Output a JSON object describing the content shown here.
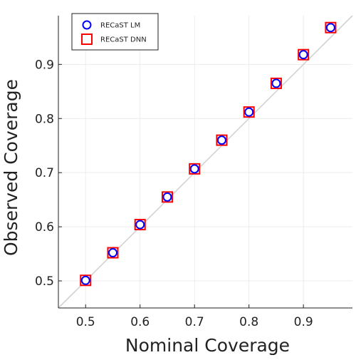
{
  "chart_data": {
    "type": "scatter",
    "xlabel": "Nominal Coverage",
    "ylabel": "Observed Coverage",
    "xlim": [
      0.45,
      0.99
    ],
    "ylim": [
      0.45,
      0.99
    ],
    "xticks": [
      "0.5",
      "0.6",
      "0.7",
      "0.8",
      "0.9"
    ],
    "yticks": [
      "0.5",
      "0.6",
      "0.7",
      "0.8",
      "0.9"
    ],
    "grid": true,
    "legend_position": "top-left",
    "reference_line": {
      "from": [
        0.45,
        0.45
      ],
      "to": [
        0.99,
        0.99
      ],
      "color": "#d3d3d3"
    },
    "series": [
      {
        "name": "RECaST LM",
        "marker": "circle",
        "color": "#0000ff",
        "x": [
          0.5,
          0.55,
          0.6,
          0.65,
          0.7,
          0.75,
          0.8,
          0.85,
          0.9,
          0.95
        ],
        "y": [
          0.501,
          0.552,
          0.604,
          0.655,
          0.707,
          0.76,
          0.812,
          0.865,
          0.918,
          0.968
        ]
      },
      {
        "name": "RECaST  DNN",
        "marker": "square",
        "color": "#ff0000",
        "x": [
          0.5,
          0.55,
          0.6,
          0.65,
          0.7,
          0.75,
          0.8,
          0.85,
          0.9,
          0.95
        ],
        "y": [
          0.501,
          0.552,
          0.604,
          0.655,
          0.707,
          0.76,
          0.812,
          0.865,
          0.918,
          0.968
        ]
      }
    ]
  }
}
